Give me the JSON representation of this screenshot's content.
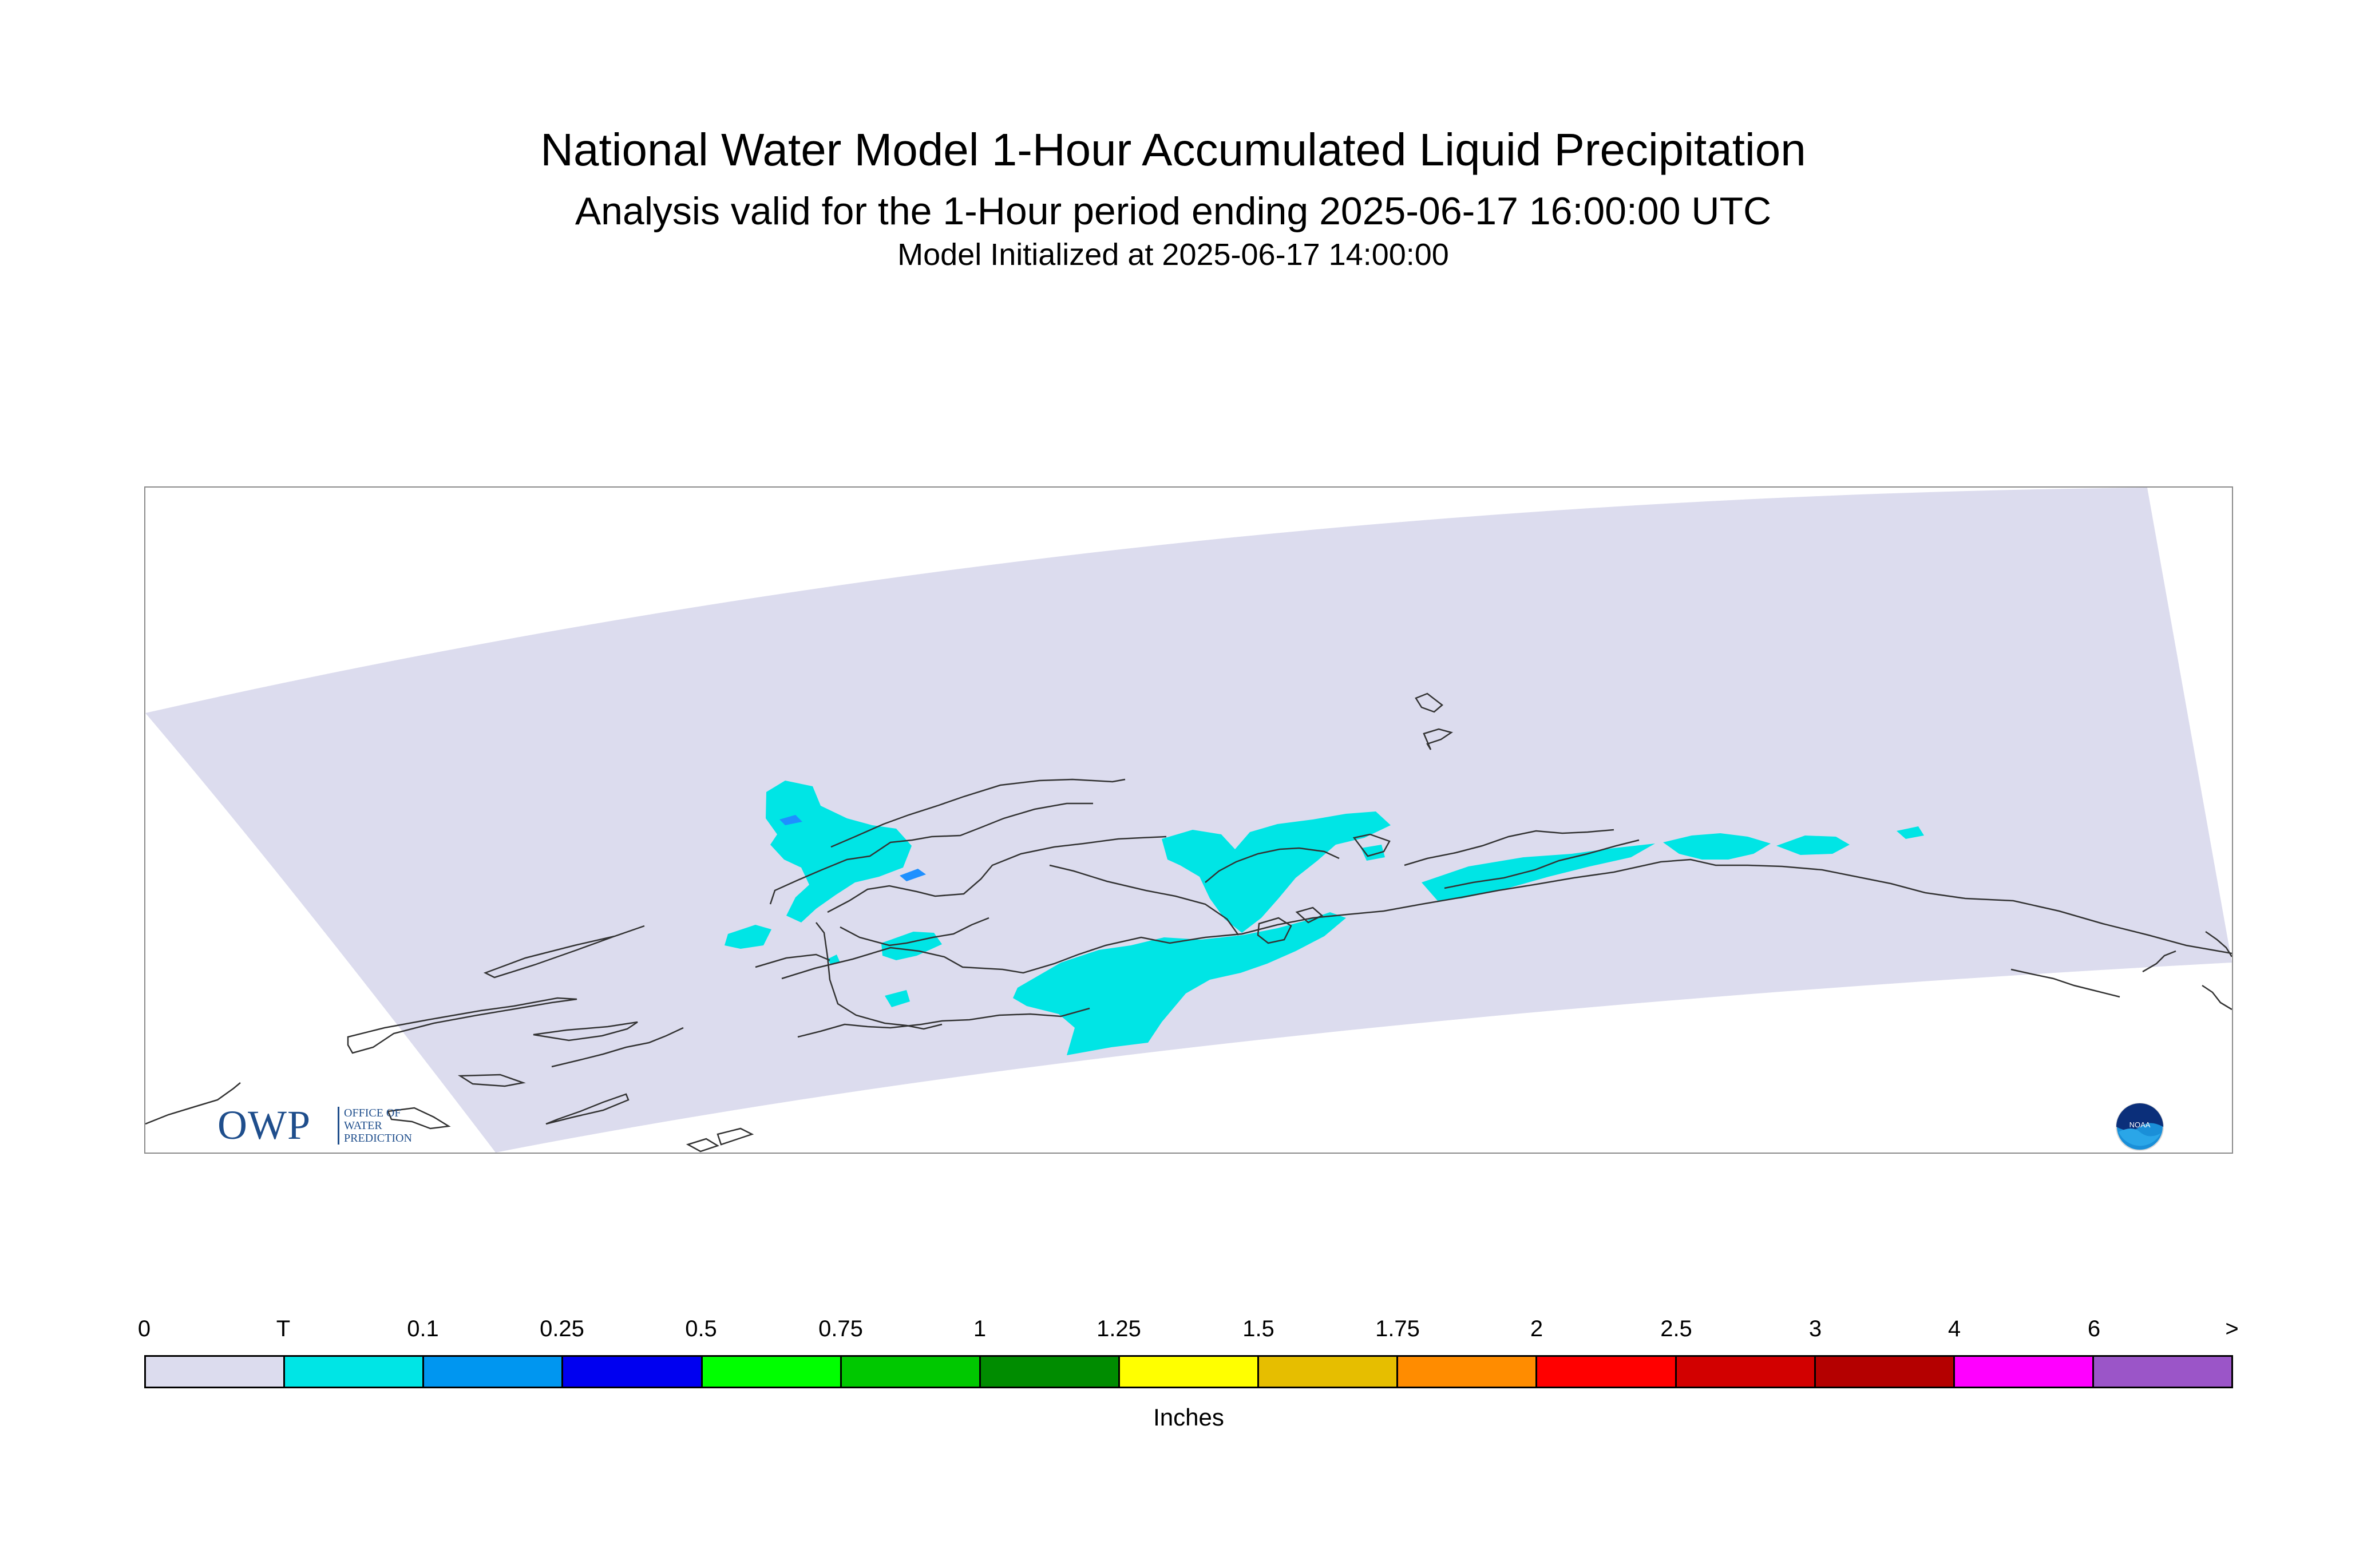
{
  "header": {
    "title": "National Water Model 1-Hour Accumulated Liquid Precipitation",
    "subtitle": "Analysis valid for the 1-Hour period ending 2025-06-17 16:00:00 UTC",
    "init": "Model Initialized at 2025-06-17 14:00:00"
  },
  "map": {
    "domain_fill": "#dcdcee",
    "precip_colors": {
      "trace": "#00e5e5",
      "light": "#1e90ff"
    },
    "coastline_color": "#333333",
    "logos": {
      "owp": {
        "main": "OWP",
        "lines": [
          "OFFICE OF",
          "WATER",
          "PREDICTION"
        ]
      },
      "noaa": {
        "text": "NOAA"
      }
    }
  },
  "legend": {
    "labels": [
      "0",
      "T",
      "0.1",
      "0.25",
      "0.5",
      "0.75",
      "1",
      "1.25",
      "1.5",
      "1.75",
      "2",
      "2.5",
      "3",
      "4",
      "6",
      ">"
    ],
    "colors": [
      "#dcdcee",
      "#00e5e5",
      "#0096f0",
      "#0000f0",
      "#00ff00",
      "#00c800",
      "#008c00",
      "#ffff00",
      "#e6be00",
      "#ff8c00",
      "#ff0000",
      "#d20000",
      "#b40000",
      "#ff00ff",
      "#9b55c8"
    ],
    "units": "Inches"
  }
}
